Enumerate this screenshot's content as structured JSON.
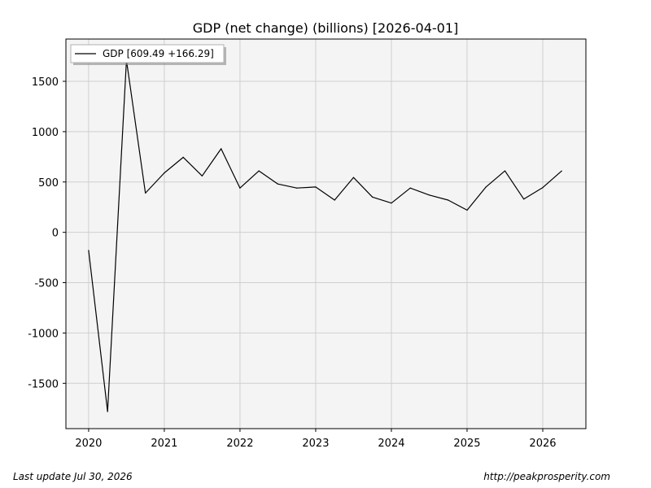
{
  "chart_data": {
    "type": "line",
    "title": "GDP (net change) (billions) [2026-04-01]",
    "xlabel": "",
    "ylabel": "",
    "x_tick_labels": [
      "2020",
      "2021",
      "2022",
      "2023",
      "2024",
      "2025",
      "2026"
    ],
    "x_ticks": [
      2020,
      2021,
      2022,
      2023,
      2024,
      2025,
      2026
    ],
    "y_ticks": [
      -1500,
      -1000,
      -500,
      0,
      500,
      1000,
      1500
    ],
    "y_tick_labels": [
      "-1500",
      "-1000",
      "-500",
      "0",
      "500",
      "1000",
      "1500"
    ],
    "xlim": [
      2019.7,
      2026.57
    ],
    "ylim": [
      -1950,
      1920
    ],
    "grid": true,
    "legend_position": "upper-left",
    "series": [
      {
        "name": "GDP [609.49 +166.29]",
        "color": "#000000",
        "x": [
          2020.0,
          2020.25,
          2020.5,
          2020.75,
          2021.0,
          2021.25,
          2021.5,
          2021.75,
          2022.0,
          2022.25,
          2022.5,
          2022.75,
          2023.0,
          2023.25,
          2023.5,
          2023.75,
          2024.0,
          2024.25,
          2024.5,
          2024.75,
          2025.0,
          2025.25,
          2025.5,
          2025.75,
          2026.0,
          2026.25
        ],
        "y": [
          -180,
          -1780,
          1710,
          390,
          590,
          745,
          560,
          830,
          440,
          610,
          480,
          440,
          450,
          320,
          545,
          350,
          290,
          440,
          370,
          320,
          220,
          450,
          610,
          330,
          445,
          609.49
        ]
      }
    ]
  },
  "footer": {
    "last_update": "Last update Jul 30, 2026",
    "source": "http://peakprosperity.com"
  }
}
